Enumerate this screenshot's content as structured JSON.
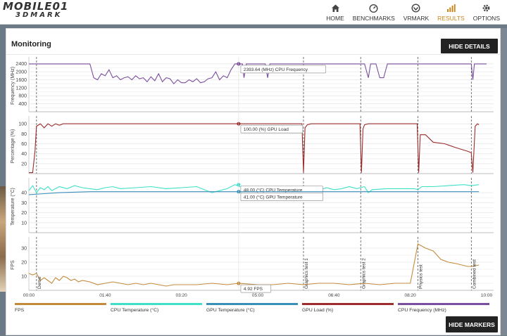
{
  "nav": {
    "items": [
      {
        "label": "HOME",
        "icon": "home-icon"
      },
      {
        "label": "BENCHMARKS",
        "icon": "speedometer-icon"
      },
      {
        "label": "VRMARK",
        "icon": "vr-icon"
      },
      {
        "label": "RESULTS",
        "icon": "bar-chart-icon",
        "active": true
      },
      {
        "label": "OPTIONS",
        "icon": "gear-icon"
      }
    ]
  },
  "panel": {
    "title": "Monitoring",
    "hide_details": "HIDE DETAILS",
    "hide_markers": "HIDE MARKERS"
  },
  "colors": {
    "fps": "#c48a3c",
    "cpu_temp": "#3ee0c8",
    "gpu_temp": "#3a8fb8",
    "gpu_load": "#9b2d2d",
    "cpu_freq": "#7a4e9e",
    "accent": "#c9861a"
  },
  "chart_data": {
    "type": "line",
    "x_unit": "mm:ss",
    "x_ticks": [
      "00:00",
      "01:40",
      "03:20",
      "05:00",
      "06:40",
      "08:20",
      "10:00"
    ],
    "x_max": 600,
    "markers": [
      {
        "t": 10,
        "label": "Demo"
      },
      {
        "t": 360,
        "label": "Graphics test 1"
      },
      {
        "t": 435,
        "label": "Graphics test 2"
      },
      {
        "t": 510,
        "label": "Physics test"
      },
      {
        "t": 580,
        "label": "Combined test"
      }
    ],
    "cursor_t": 275,
    "legend": [
      {
        "name": "FPS",
        "color": "#c48a3c"
      },
      {
        "name": "CPU Temperature (°C)",
        "color": "#3ee0c8"
      },
      {
        "name": "GPU Temperature (°C)",
        "color": "#3a8fb8"
      },
      {
        "name": "GPU Load (%)",
        "color": "#9b2d2d"
      },
      {
        "name": "CPU Frequency (MHz)",
        "color": "#7a4e9e"
      }
    ],
    "panels": [
      {
        "id": "freq",
        "ylabel": "Frequency (MHz)",
        "yticks": [
          400,
          800,
          1200,
          1600,
          2000,
          2400
        ],
        "ylim": [
          0,
          2600
        ],
        "series": [
          {
            "color": "#7a4e9e",
            "tooltip": "2393.64 (MHz) CPU Frequency",
            "tooltip_value": 2393.64,
            "points": [
              [
                0,
                2394
              ],
              [
                80,
                2394
              ],
              [
                85,
                1700
              ],
              [
                90,
                1600
              ],
              [
                95,
                1900
              ],
              [
                100,
                1800
              ],
              [
                105,
                2100
              ],
              [
                110,
                1700
              ],
              [
                115,
                1800
              ],
              [
                120,
                1600
              ],
              [
                125,
                1700
              ],
              [
                130,
                1750
              ],
              [
                135,
                1600
              ],
              [
                140,
                1800
              ],
              [
                145,
                1650
              ],
              [
                150,
                1700
              ],
              [
                155,
                1500
              ],
              [
                160,
                1750
              ],
              [
                165,
                1550
              ],
              [
                170,
                1900
              ],
              [
                175,
                1500
              ],
              [
                180,
                1700
              ],
              [
                185,
                1650
              ],
              [
                190,
                1400
              ],
              [
                195,
                1600
              ],
              [
                200,
                1450
              ],
              [
                205,
                1450
              ],
              [
                210,
                1600
              ],
              [
                215,
                1500
              ],
              [
                220,
                1650
              ],
              [
                225,
                1450
              ],
              [
                230,
                1500
              ],
              [
                235,
                1650
              ],
              [
                240,
                1700
              ],
              [
                245,
                2000
              ],
              [
                250,
                1600
              ],
              [
                255,
                1800
              ],
              [
                260,
                1700
              ],
              [
                265,
                2100
              ],
              [
                270,
                2394
              ],
              [
                275,
                2394
              ],
              [
                280,
                2394
              ],
              [
                282,
                1700
              ],
              [
                285,
                2394
              ],
              [
                310,
                2394
              ],
              [
                313,
                1700
              ],
              [
                316,
                2394
              ],
              [
                440,
                2394
              ],
              [
                445,
                1700
              ],
              [
                448,
                2394
              ],
              [
                455,
                2394
              ],
              [
                460,
                1700
              ],
              [
                465,
                1700
              ],
              [
                470,
                2394
              ],
              [
                580,
                2394
              ],
              [
                582,
                1600
              ],
              [
                584,
                2394
              ],
              [
                600,
                2394
              ]
            ]
          }
        ]
      },
      {
        "id": "load",
        "ylabel": "Percentage (%)",
        "yticks": [
          20,
          40,
          60,
          80,
          100
        ],
        "ylim": [
          0,
          110
        ],
        "series": [
          {
            "color": "#9b2d2d",
            "tooltip": "100.00 (%) GPU Load",
            "tooltip_value": 100,
            "points": [
              [
                0,
                2
              ],
              [
                5,
                2
              ],
              [
                8,
                45
              ],
              [
                10,
                95
              ],
              [
                15,
                100
              ],
              [
                20,
                92
              ],
              [
                25,
                100
              ],
              [
                30,
                95
              ],
              [
                35,
                100
              ],
              [
                40,
                97
              ],
              [
                45,
                100
              ],
              [
                350,
                100
              ],
              [
                358,
                100
              ],
              [
                360,
                2
              ],
              [
                362,
                92
              ],
              [
                365,
                98
              ],
              [
                370,
                100
              ],
              [
                430,
                100
              ],
              [
                434,
                100
              ],
              [
                436,
                2
              ],
              [
                438,
                90
              ],
              [
                440,
                98
              ],
              [
                445,
                100
              ],
              [
                505,
                100
              ],
              [
                509,
                100
              ],
              [
                511,
                2
              ],
              [
                513,
                78
              ],
              [
                520,
                78
              ],
              [
                530,
                63
              ],
              [
                545,
                60
              ],
              [
                560,
                52
              ],
              [
                575,
                45
              ],
              [
                580,
                42
              ],
              [
                582,
                2
              ],
              [
                585,
                95
              ],
              [
                588,
                100
              ],
              [
                590,
                98
              ]
            ]
          }
        ]
      },
      {
        "id": "temp",
        "ylabel": "Temperature (°C)",
        "yticks": [
          10,
          20,
          30,
          40
        ],
        "ylim": [
          0,
          52
        ],
        "series": [
          {
            "color": "#3ee0c8",
            "tooltip": "48.00 (°C) CPU Temperature",
            "tooltip_value": 48,
            "points": [
              [
                0,
                42
              ],
              [
                5,
                47
              ],
              [
                10,
                40
              ],
              [
                15,
                45
              ],
              [
                20,
                43
              ],
              [
                25,
                46
              ],
              [
                30,
                42
              ],
              [
                40,
                46
              ],
              [
                50,
                44
              ],
              [
                60,
                47
              ],
              [
                70,
                45
              ],
              [
                80,
                44
              ],
              [
                90,
                43
              ],
              [
                100,
                45
              ],
              [
                110,
                46
              ],
              [
                120,
                44
              ],
              [
                140,
                45
              ],
              [
                160,
                46
              ],
              [
                180,
                44
              ],
              [
                200,
                45
              ],
              [
                220,
                46
              ],
              [
                240,
                40
              ],
              [
                250,
                42
              ],
              [
                260,
                44
              ],
              [
                270,
                48
              ],
              [
                280,
                45
              ],
              [
                300,
                44
              ],
              [
                320,
                45
              ],
              [
                340,
                45
              ],
              [
                350,
                46
              ],
              [
                360,
                43
              ],
              [
                370,
                45
              ],
              [
                380,
                42
              ],
              [
                390,
                45
              ],
              [
                400,
                43
              ],
              [
                410,
                44
              ],
              [
                420,
                46
              ],
              [
                430,
                44
              ],
              [
                440,
                46
              ],
              [
                445,
                40
              ],
              [
                450,
                43
              ],
              [
                470,
                44
              ],
              [
                490,
                44
              ],
              [
                505,
                44
              ],
              [
                510,
                43
              ],
              [
                515,
                46
              ],
              [
                530,
                46
              ],
              [
                550,
                47
              ],
              [
                570,
                48
              ],
              [
                580,
                47
              ],
              [
                590,
                48
              ]
            ]
          },
          {
            "color": "#3a8fb8",
            "tooltip": "41.00 (°C) GPU Temperature",
            "tooltip_value": 41,
            "points": [
              [
                0,
                38
              ],
              [
                20,
                39
              ],
              [
                40,
                40
              ],
              [
                80,
                41
              ],
              [
                120,
                41
              ],
              [
                200,
                41
              ],
              [
                270,
                41
              ],
              [
                360,
                41
              ],
              [
                440,
                41
              ],
              [
                510,
                41
              ],
              [
                590,
                41
              ]
            ]
          }
        ]
      },
      {
        "id": "fps",
        "ylabel": "FPS",
        "yticks": [
          10,
          20,
          30
        ],
        "ylim": [
          0,
          36
        ],
        "series": [
          {
            "color": "#c48a3c",
            "tooltip": "4.92 FPS",
            "tooltip_value": 4.92,
            "points": [
              [
                0,
                12
              ],
              [
                5,
                11
              ],
              [
                10,
                12
              ],
              [
                15,
                7
              ],
              [
                20,
                9
              ],
              [
                25,
                7
              ],
              [
                30,
                5
              ],
              [
                35,
                9
              ],
              [
                40,
                7
              ],
              [
                45,
                10
              ],
              [
                50,
                9
              ],
              [
                55,
                7
              ],
              [
                60,
                8
              ],
              [
                65,
                6
              ],
              [
                70,
                7
              ],
              [
                80,
                6
              ],
              [
                90,
                4
              ],
              [
                100,
                5
              ],
              [
                110,
                6
              ],
              [
                120,
                5
              ],
              [
                130,
                4
              ],
              [
                140,
                5
              ],
              [
                150,
                4
              ],
              [
                160,
                5
              ],
              [
                170,
                4
              ],
              [
                180,
                3
              ],
              [
                190,
                4
              ],
              [
                200,
                4
              ],
              [
                220,
                4
              ],
              [
                240,
                5
              ],
              [
                260,
                4
              ],
              [
                275,
                5
              ],
              [
                300,
                4
              ],
              [
                320,
                4
              ],
              [
                340,
                5
              ],
              [
                360,
                4
              ],
              [
                380,
                5
              ],
              [
                400,
                5
              ],
              [
                420,
                4
              ],
              [
                440,
                5
              ],
              [
                460,
                4
              ],
              [
                480,
                5
              ],
              [
                500,
                5
              ],
              [
                510,
                33
              ],
              [
                520,
                30
              ],
              [
                530,
                28
              ],
              [
                540,
                22
              ],
              [
                550,
                20
              ],
              [
                560,
                19
              ],
              [
                575,
                17
              ],
              [
                580,
                17
              ],
              [
                590,
                18
              ]
            ]
          }
        ]
      }
    ]
  }
}
